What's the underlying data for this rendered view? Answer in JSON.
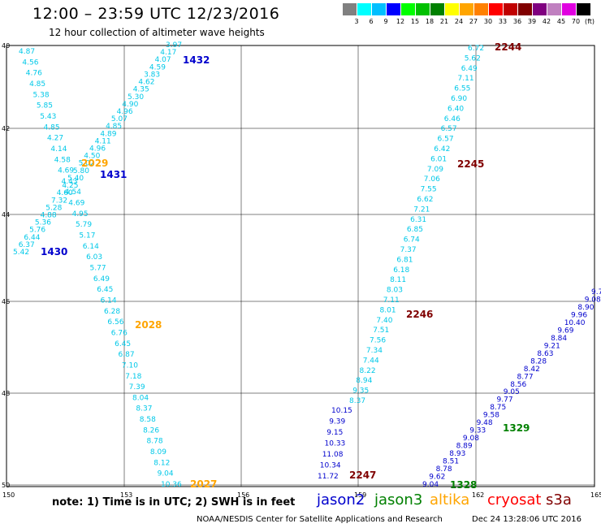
{
  "title": "12:00 – 23:59 UTC 12/23/2016",
  "subtitle": "12 hour collection of altimeter wave heights",
  "color_scale": {
    "labels": [
      "3",
      "6",
      "9",
      "12",
      "15",
      "18",
      "21",
      "24",
      "27",
      "30",
      "33",
      "36",
      "39",
      "42",
      "45",
      "70"
    ],
    "unit": "(ft)",
    "colors": [
      "#808080",
      "#00ffff",
      "#00bfff",
      "#0000ff",
      "#00ff00",
      "#00c000",
      "#008000",
      "#ffff00",
      "#ffa500",
      "#ff8000",
      "#ff0000",
      "#c00000",
      "#800000",
      "#800080",
      "#c080c0",
      "#e000e0",
      "#000000"
    ]
  },
  "axes": {
    "lat_labels": [
      "40",
      "42",
      "44",
      "46",
      "48",
      "50"
    ],
    "lon_labels": [
      "150",
      "153",
      "156",
      "159",
      "162",
      "165"
    ]
  },
  "colors": {
    "jason2": "#0000cd",
    "jason3": "#008000",
    "altika": "#ffa500",
    "cryosat": "#ff0000",
    "s3a": "#800000",
    "light": "#00c8e8",
    "grid": "#000000"
  },
  "note": "note: 1) Time is in UTC; 2) SWH is in feet",
  "legend": [
    {
      "name": "jason2",
      "color": "#0000cd"
    },
    {
      "name": "jason3",
      "color": "#008000"
    },
    {
      "name": "altika",
      "color": "#ffa500"
    },
    {
      "name": "cryosat",
      "color": "#ff0000"
    },
    {
      "name": "s3a",
      "color": "#800000"
    }
  ],
  "footer_left": "NOAA/NESDIS Center for Satellite Applications and Research",
  "footer_right": "Dec 24 13:28:06 UTC 2016",
  "tracks": [
    {
      "label": "1432",
      "label_color": "jason2",
      "values": [
        "3.97",
        "4.17",
        "4.07",
        "4.59",
        "3.83",
        "4.62",
        "4.35",
        "5.30",
        "4.90",
        "4.96",
        "5.07",
        "4.85",
        "4.89",
        "4.11",
        "4.96",
        "4.50",
        "5.02",
        "5.80",
        "5.40",
        "4.25",
        "4.60",
        "7.32",
        "5.28",
        "4.88",
        "5.36",
        "5.76",
        "6.44",
        "6.37",
        "5.42"
      ]
    },
    {
      "label": "1430",
      "label_color": "jason2",
      "values": [
        "4.87",
        "4.56",
        "4.76",
        "4.85",
        "5.38",
        "5.85",
        "5.43",
        "4.85",
        "4.27",
        "4.14",
        "4.58",
        "4.69",
        "4.43",
        "4.54",
        "4.69",
        "4.95",
        "5.79",
        "5.17",
        "6.14",
        "6.03",
        "5.77",
        "6.49",
        "6.45",
        "6.14",
        "6.28",
        "6.56",
        "6.76",
        "6.45",
        "6.87",
        "7.10",
        "7.18",
        "7.39",
        "8.04",
        "8.37",
        "8.58",
        "8.26",
        "8.78",
        "8.09",
        "8.12",
        "9.04",
        "10.36"
      ]
    },
    {
      "label": "1431",
      "label_color": "jason2"
    },
    {
      "label": "2029",
      "label_color": "altika"
    },
    {
      "label": "2028",
      "label_color": "altika"
    },
    {
      "label": "2027",
      "label_color": "altika"
    },
    {
      "label": "2244",
      "label_color": "s3a",
      "values": [
        "6.72",
        "5.62",
        "6.49",
        "7.11",
        "6.55",
        "6.90",
        "6.40",
        "6.46",
        "6.57",
        "6.57",
        "6.42",
        "6.01",
        "7.09",
        "7.06",
        "7.55",
        "6.62",
        "7.21",
        "6.31",
        "6.85",
        "6.74",
        "7.37",
        "6.81",
        "6.18",
        "8.11",
        "8.03",
        "7.11",
        "8.01",
        "7.40",
        "7.51",
        "7.56",
        "7.34",
        "7.44",
        "8.22",
        "8.94",
        "9.35",
        "8.37"
      ]
    },
    {
      "label": "2245",
      "label_color": "s3a"
    },
    {
      "label": "2246",
      "label_color": "s3a"
    },
    {
      "label": "2247",
      "label_color": "s3a",
      "values": [
        "10.15",
        "9.39",
        "9.15",
        "10.33",
        "11.08",
        "10.34",
        "11.72"
      ]
    },
    {
      "label": "1329",
      "label_color": "jason3",
      "values": [
        "9.7",
        "9.08",
        "8.90",
        "9.96",
        "10.40",
        "9.69",
        "8.84",
        "9.21",
        "8.63",
        "8.28",
        "8.42",
        "8.77",
        "8.56",
        "9.05",
        "9.77",
        "8.75",
        "9.58",
        "9.48",
        "9.33",
        "9.08",
        "8.89",
        "8.93",
        "8.51",
        "8.78",
        "9.62",
        "9.04"
      ]
    },
    {
      "label": "1328",
      "label_color": "jason3"
    }
  ]
}
